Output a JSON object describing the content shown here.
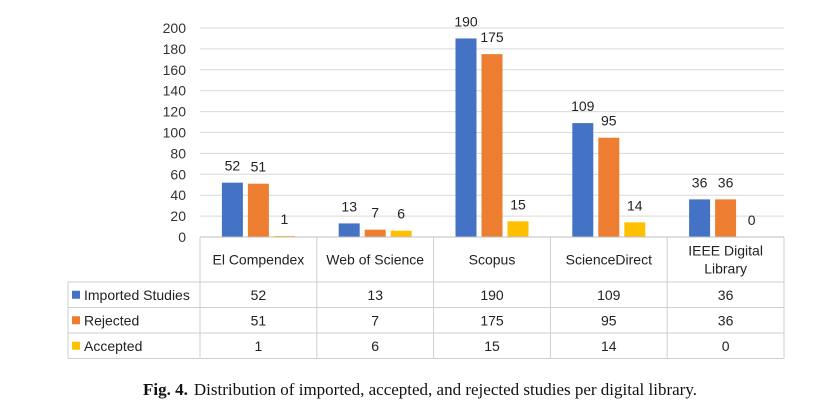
{
  "chart_data": {
    "type": "bar",
    "categories": [
      "El Compendex",
      "Web of Science",
      "Scopus",
      "ScienceDirect",
      "IEEE Digital Library"
    ],
    "category_lines": [
      [
        "El Compendex"
      ],
      [
        "Web of Science"
      ],
      [
        "Scopus"
      ],
      [
        "ScienceDirect"
      ],
      [
        "IEEE Digital",
        "Library"
      ]
    ],
    "series": [
      {
        "name": "Imported Studies",
        "values": [
          52,
          13,
          190,
          109,
          36
        ],
        "color": "#4472C4"
      },
      {
        "name": "Rejected",
        "values": [
          51,
          7,
          175,
          95,
          36
        ],
        "color": "#ED7D31"
      },
      {
        "name": "Accepted",
        "values": [
          1,
          6,
          15,
          14,
          0
        ],
        "color": "#FFC000"
      }
    ],
    "ylim": [
      0,
      200
    ],
    "yticks": [
      0,
      20,
      40,
      60,
      80,
      100,
      120,
      140,
      160,
      180,
      200
    ],
    "grid": true,
    "data_table": true
  },
  "caption": {
    "label": "Fig. 4.",
    "text": "Distribution of imported, accepted, and rejected studies per digital library."
  }
}
